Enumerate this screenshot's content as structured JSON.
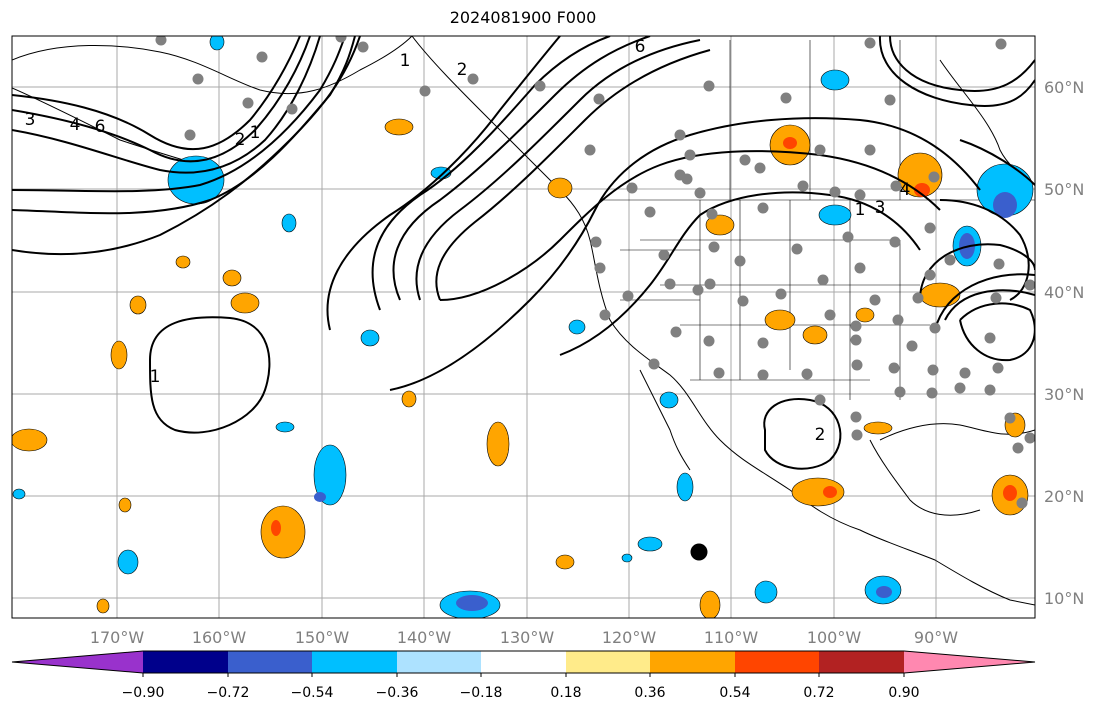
{
  "title": "2024081900 F000",
  "map": {
    "lon_labels": [
      "170°W",
      "160°W",
      "150°W",
      "140°W",
      "130°W",
      "120°W",
      "110°W",
      "100°W",
      "90°W"
    ],
    "lat_labels": [
      "60°N",
      "50°N",
      "40°N",
      "30°N",
      "20°N",
      "10°N"
    ],
    "contour_labels": [
      "1",
      "2",
      "3",
      "4",
      "6",
      "1",
      "2",
      "1",
      "1",
      "2",
      "3",
      "4",
      "6"
    ]
  },
  "colorbar": {
    "tick_labels": [
      "−0.90",
      "−0.72",
      "−0.54",
      "−0.36",
      "−0.18",
      "0.18",
      "0.36",
      "0.54",
      "0.72",
      "0.90"
    ],
    "colors": [
      "#9932CC",
      "#00008B",
      "#3A5FCD",
      "#00BFFF",
      "#ADE2FF",
      "#FFFFFF",
      "#FFEB8A",
      "#FFA500",
      "#FF4500",
      "#B22222",
      "#FF88B0"
    ]
  }
}
